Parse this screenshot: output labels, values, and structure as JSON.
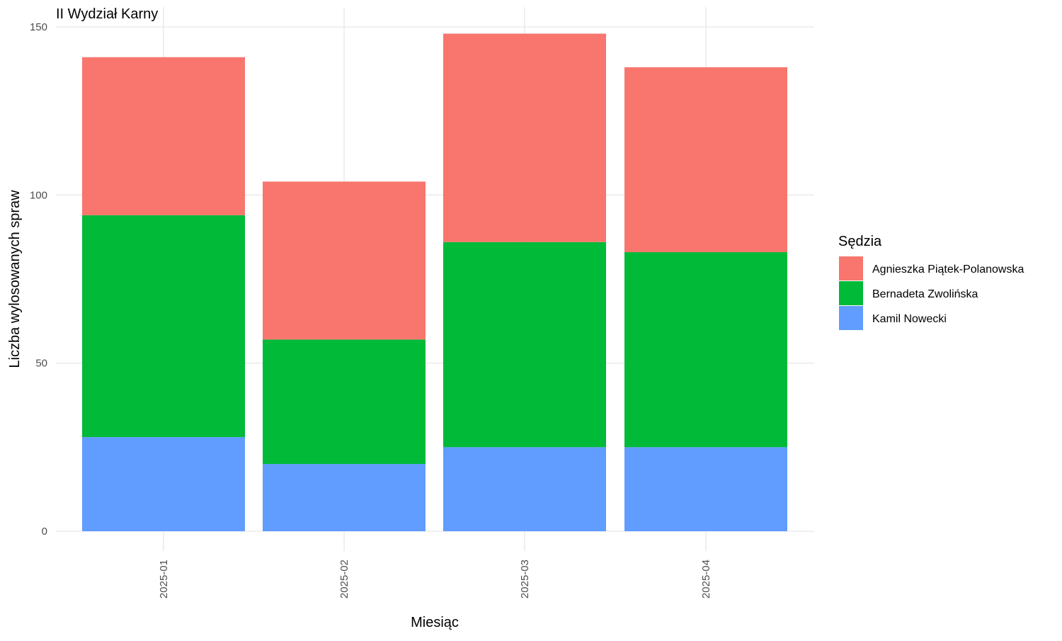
{
  "chart_data": {
    "type": "bar",
    "stacked": true,
    "title": "II Wydział Karny",
    "xlabel": "Miesiąc",
    "ylabel": "Liczba wylosowanych spraw",
    "categories": [
      "2025-01",
      "2025-02",
      "2025-03",
      "2025-04"
    ],
    "ylim": [
      0,
      150
    ],
    "yticks": [
      0,
      50,
      100,
      150
    ],
    "grid": true,
    "legend": {
      "title": "Sędzia",
      "placement": "right"
    },
    "series": [
      {
        "name": "Kamil Nowecki",
        "color": "#619CFF",
        "values": [
          28,
          20,
          25,
          25
        ]
      },
      {
        "name": "Bernadeta Zwolińska",
        "color": "#00BA38",
        "values": [
          66,
          37,
          61,
          58
        ]
      },
      {
        "name": "Agnieszka Piątek-Polanowska",
        "color": "#F8766D",
        "values": [
          47,
          47,
          62,
          55
        ]
      }
    ],
    "legend_order": [
      "Agnieszka Piątek-Polanowska",
      "Bernadeta Zwolińska",
      "Kamil Nowecki"
    ]
  }
}
